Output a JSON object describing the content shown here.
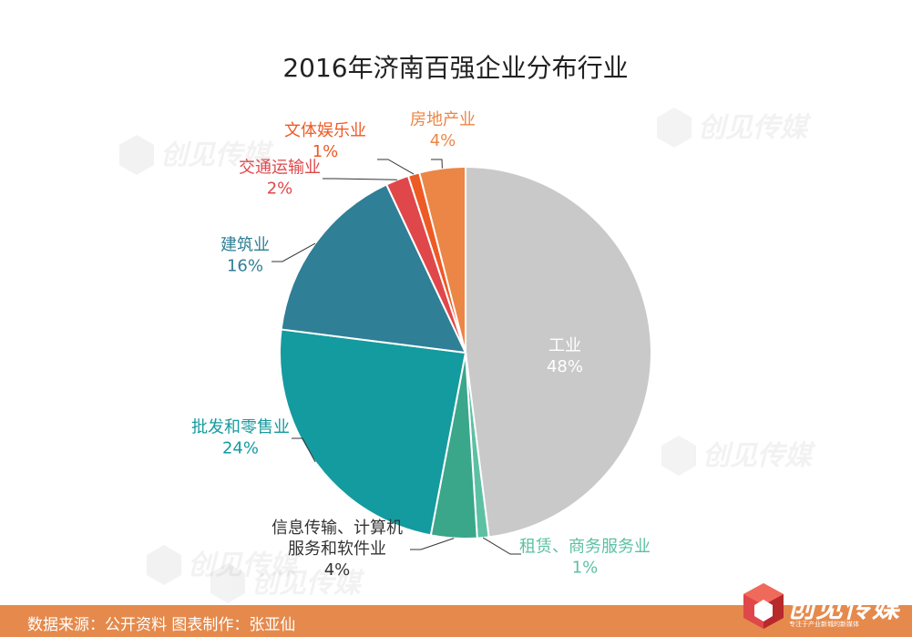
{
  "chart_data": {
    "type": "pie",
    "title": "2016年济南百强企业分布行业",
    "slices": [
      {
        "label": "工业",
        "value": 48,
        "value_label": "48%",
        "color": "#c9c9c9"
      },
      {
        "label": "租赁、商务服务业",
        "value": 1,
        "value_label": "1%",
        "color": "#5cc0a3"
      },
      {
        "label": "信息传输、计算机服务和软件业",
        "label_lines": [
          "信息传输、计算机",
          "服务和软件业"
        ],
        "value": 4,
        "value_label": "4%",
        "color": "#3aa68a"
      },
      {
        "label": "批发和零售业",
        "value": 24,
        "value_label": "24%",
        "color": "#149b9f"
      },
      {
        "label": "建筑业",
        "value": 16,
        "value_label": "16%",
        "color": "#2f7f96"
      },
      {
        "label": "交通运输业",
        "value": 2,
        "value_label": "2%",
        "color": "#e0474a"
      },
      {
        "label": "文体娱乐业",
        "value": 1,
        "value_label": "1%",
        "color": "#ee5a24"
      },
      {
        "label": "房地产业",
        "value": 4,
        "value_label": "4%",
        "color": "#ec8646"
      }
    ]
  },
  "footer": {
    "source": "数据来源：公开资料 图表制作：张亚仙",
    "brand": "创见传媒",
    "slogan": "专注于产业新城的新媒体"
  },
  "watermark": {
    "text": "创见传媒",
    "slogan": "专注于产业新城的新媒体"
  },
  "colors": {
    "footer": "#e58a4c"
  }
}
